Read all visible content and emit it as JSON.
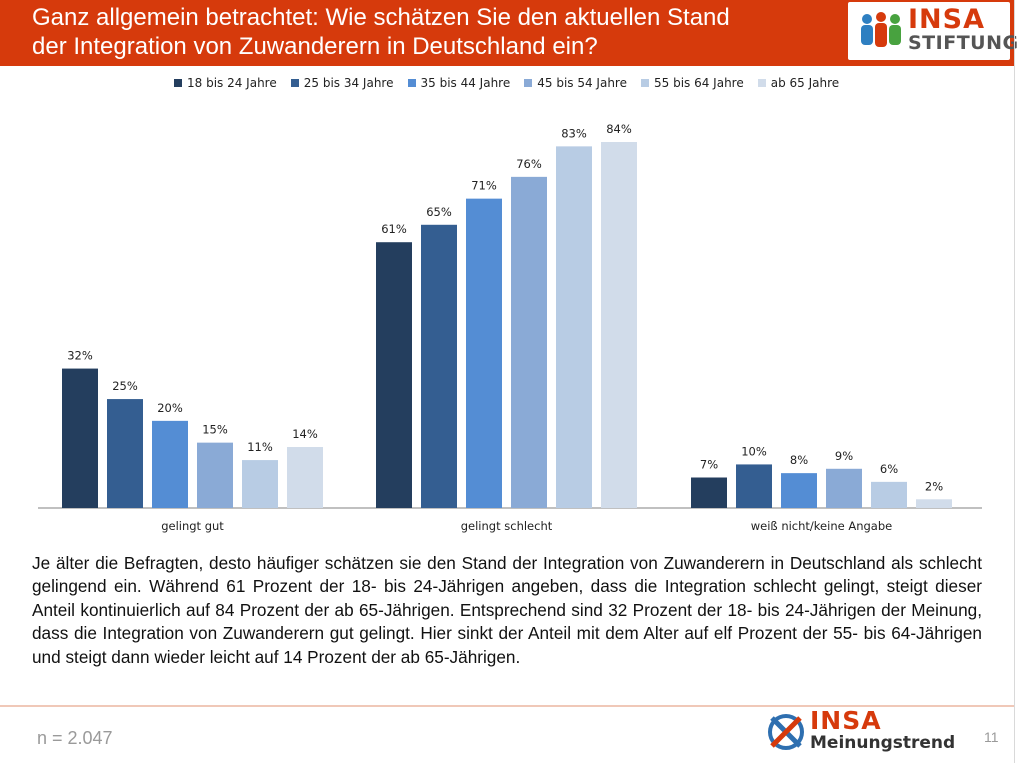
{
  "header": {
    "title_line1": "Ganz allgemein betrachtet: Wie schätzen Sie den aktuellen Stand",
    "title_line2": "der Integration von Zuwanderern in Deutschland ein?",
    "logo_brand": "INSA",
    "logo_sub": "STIFTUNG"
  },
  "chart_data": {
    "type": "bar",
    "title": "Ganz allgemein betrachtet: Wie schätzen Sie den aktuellen Stand der Integration von Zuwanderern in Deutschland ein?",
    "categories": [
      "gelingt gut",
      "gelingt schlecht",
      "weiß nicht/keine Angabe"
    ],
    "series": [
      {
        "name": "18 bis 24 Jahre",
        "values": [
          32,
          61,
          7
        ],
        "color": "#243e5e"
      },
      {
        "name": "25 bis 34 Jahre",
        "values": [
          25,
          65,
          10
        ],
        "color": "#345e91"
      },
      {
        "name": "35 bis 44 Jahre",
        "values": [
          20,
          71,
          8
        ],
        "color": "#548dd4"
      },
      {
        "name": "45 bis 54 Jahre",
        "values": [
          15,
          76,
          9
        ],
        "color": "#8aaad6"
      },
      {
        "name": "55 bis 64 Jahre",
        "values": [
          11,
          83,
          6
        ],
        "color": "#b8cce4"
      },
      {
        "name": "ab 65 Jahre",
        "values": [
          14,
          84,
          2
        ],
        "color": "#d1dcea"
      }
    ],
    "value_suffix": "%",
    "xlabel": "",
    "ylabel": "",
    "ylim": [
      0,
      100
    ],
    "grid": false,
    "legend_position": "top"
  },
  "summary": {
    "text": "Je älter die Befragten, desto häufiger schätzen sie den Stand der Integration von Zuwanderern in Deutschland als schlecht gelingend ein. Während 61 Prozent der 18- bis 24-Jährigen angeben, dass die Integration schlecht gelingt, steigt dieser Anteil kontinuierlich auf 84 Prozent der ab 65-Jährigen. Entsprechend sind 32 Prozent der 18- bis 24-Jährigen der Meinung, dass die Integration von Zuwanderern gut gelingt. Hier sinkt der Anteil mit dem Alter auf elf Prozent der 55- bis 64-Jährigen und steigt dann wieder leicht auf 14 Prozent der ab 65-Jährigen."
  },
  "footer": {
    "sample": "n = 2.047",
    "logo_brand": "INSA",
    "logo_sub": "Meinungstrend",
    "page_number": "11"
  },
  "colors": {
    "accent": "#d63a0c",
    "axis": "#808080"
  }
}
